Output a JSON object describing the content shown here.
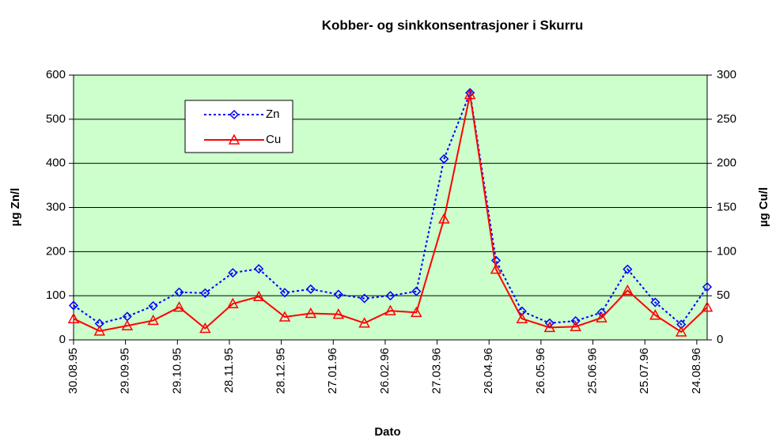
{
  "chart_data": {
    "type": "line",
    "title": "Kobber- og sinkkonsentrasjoner i Skurru",
    "x_label": "Dato",
    "y_label": "µg Zn/l",
    "y2_label": "µg Cu/l",
    "x": [
      "30.08.95",
      "14.09.95",
      "30.09.95",
      "15.10.95",
      "30.10.95",
      "14.11.95",
      "30.11.95",
      "15.12.95",
      "30.12.95",
      "14.01.96",
      "30.01.96",
      "14.02.96",
      "29.02.96",
      "15.03.96",
      "31.03.96",
      "15.04.96",
      "30.04.96",
      "15.05.96",
      "31.05.96",
      "15.06.96",
      "30.06.96",
      "15.07.96",
      "31.07.96",
      "15.08.96",
      "30.08.96"
    ],
    "xlim": [
      "30.08.95",
      "30.08.96"
    ],
    "xticks": [
      "30.08.95",
      "29.09.95",
      "29.10.95",
      "28.11.95",
      "28.12.95",
      "27.01.96",
      "26.02.96",
      "27.03.96",
      "26.04.96",
      "26.05.96",
      "25.06.96",
      "25.07.96",
      "24.08.96"
    ],
    "ylim": [
      0,
      600
    ],
    "yticks": [
      0,
      100,
      200,
      300,
      400,
      500,
      600
    ],
    "y2lim": [
      0,
      300
    ],
    "y2ticks": [
      0,
      50,
      100,
      150,
      200,
      250,
      300
    ],
    "background": "#ccffcc",
    "legend": "upper left",
    "series": [
      {
        "name": "Zn",
        "color": "#0000ff",
        "marker": "diamond",
        "dash": "dotted",
        "values": [
          78,
          37,
          53,
          77,
          108,
          106,
          152,
          161,
          107,
          115,
          103,
          94,
          100,
          110,
          410,
          560,
          180,
          65,
          38,
          43,
          62,
          160,
          85,
          35,
          120
        ]
      },
      {
        "name": "Cu",
        "color": "#ff0000",
        "marker": "triangle",
        "dash": "solid",
        "axis": "y2",
        "values": [
          24,
          10,
          16,
          22,
          37,
          13,
          41,
          49,
          26,
          30,
          29,
          19,
          33,
          31,
          137,
          278,
          80,
          24,
          14,
          15,
          25,
          56,
          28,
          9,
          37
        ]
      }
    ]
  }
}
